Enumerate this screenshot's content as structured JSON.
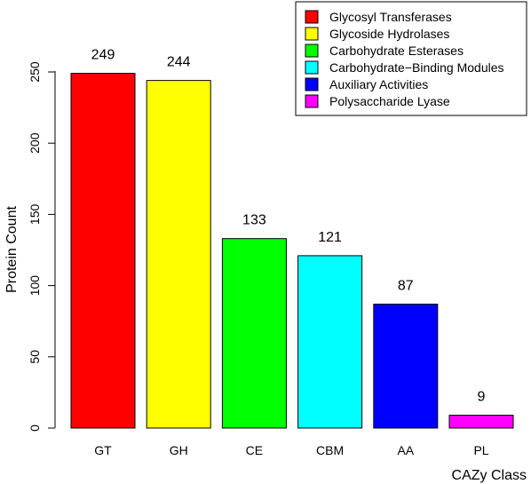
{
  "chart_data": {
    "type": "bar",
    "categories": [
      "GT",
      "GH",
      "CE",
      "CBM",
      "AA",
      "PL"
    ],
    "values": [
      249,
      244,
      133,
      121,
      87,
      9
    ],
    "colors": [
      "#ff0000",
      "#ffff00",
      "#00ff00",
      "#00ffff",
      "#0000ff",
      "#ff00ff"
    ],
    "xlabel": "CAZy Class",
    "ylabel": "Protein Count",
    "ylim": [
      0,
      250
    ],
    "yticks": [
      0,
      50,
      100,
      150,
      200,
      250
    ],
    "grid": false,
    "legend": {
      "placement": "top-right",
      "entries": [
        {
          "label": "Glycosyl Transferases",
          "color": "#ff0000"
        },
        {
          "label": "Glycoside Hydrolases",
          "color": "#ffff00"
        },
        {
          "label": "Carbohydrate Esterases",
          "color": "#00ff00"
        },
        {
          "label": "Carbohydrate−Binding Modules",
          "color": "#00ffff"
        },
        {
          "label": "Auxiliary Activities",
          "color": "#0000ff"
        },
        {
          "label": "Polysaccharide Lyase",
          "color": "#ff00ff"
        }
      ]
    }
  }
}
